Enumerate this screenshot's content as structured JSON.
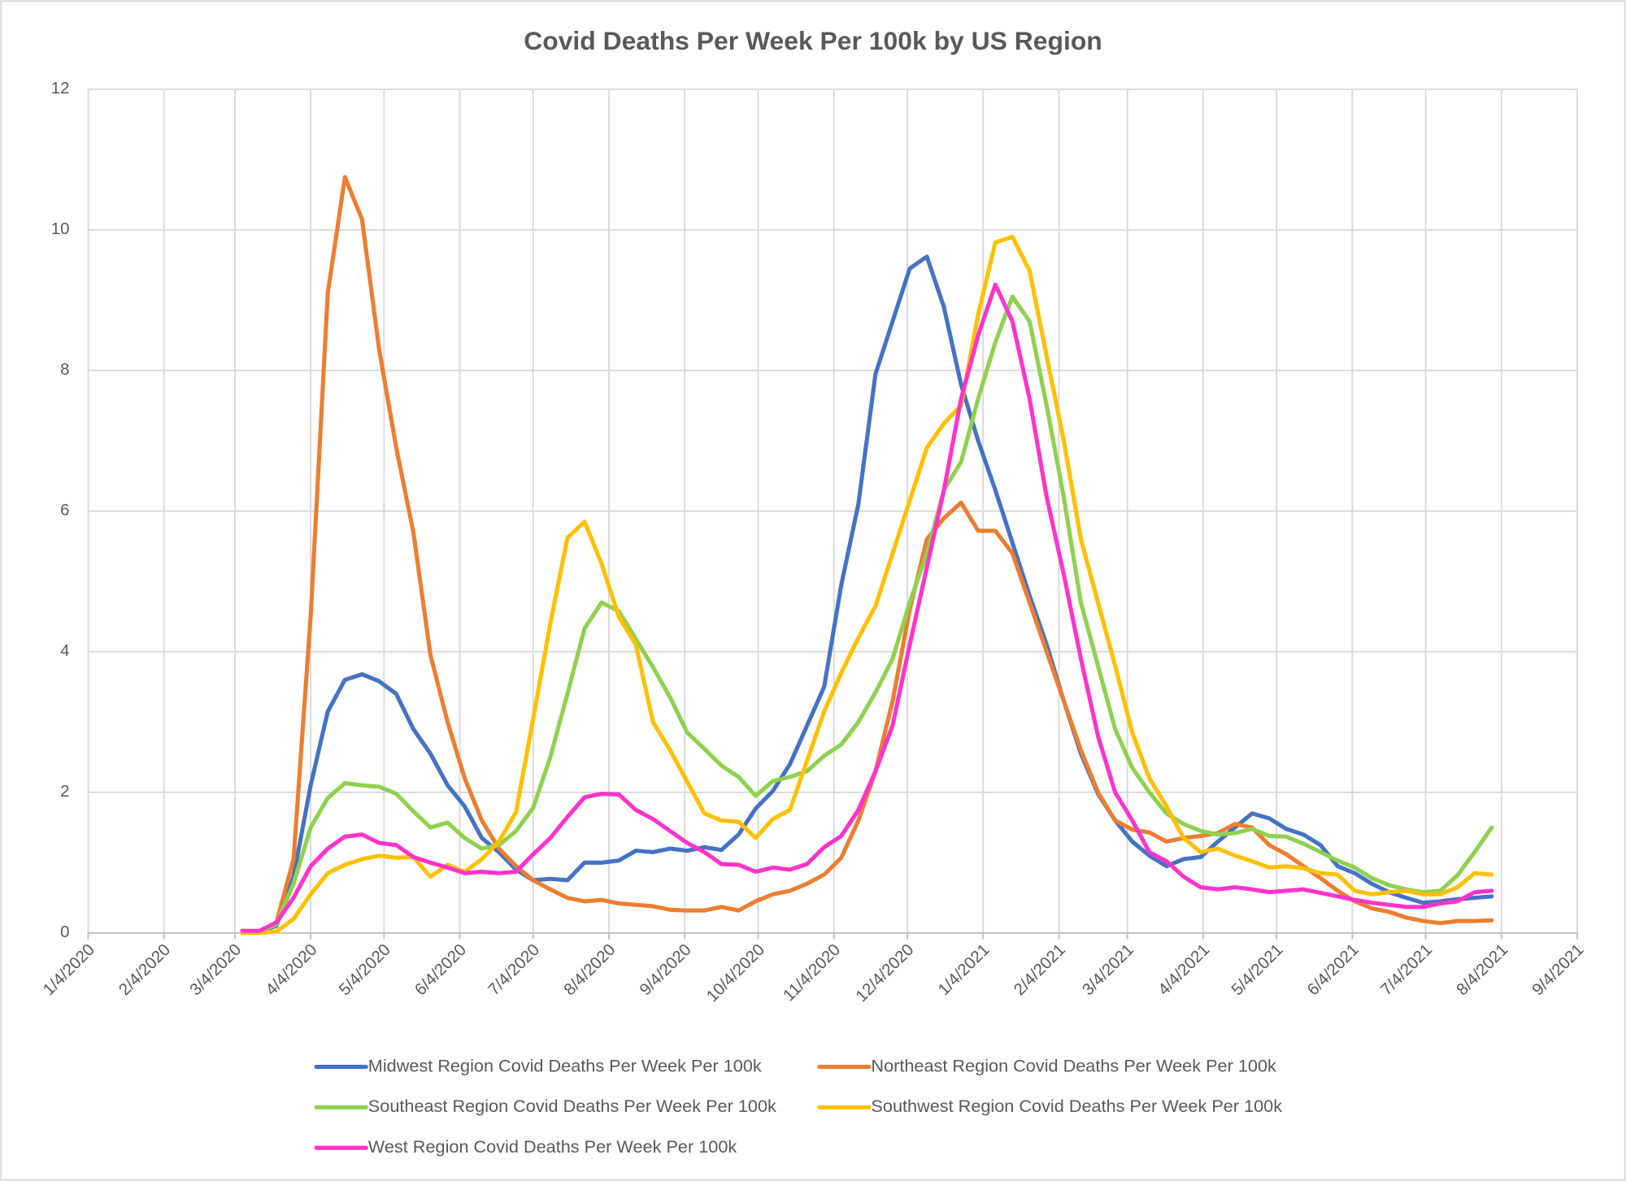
{
  "chart_data": {
    "type": "line",
    "title": "Covid Deaths Per Week Per 100k by US Region",
    "x": [
      "2020-03-07",
      "2020-03-14",
      "2020-03-21",
      "2020-03-28",
      "2020-04-04",
      "2020-04-11",
      "2020-04-18",
      "2020-04-25",
      "2020-05-02",
      "2020-05-09",
      "2020-05-16",
      "2020-05-23",
      "2020-05-30",
      "2020-06-06",
      "2020-06-13",
      "2020-06-20",
      "2020-06-27",
      "2020-07-04",
      "2020-07-11",
      "2020-07-18",
      "2020-07-25",
      "2020-08-01",
      "2020-08-08",
      "2020-08-15",
      "2020-08-22",
      "2020-08-29",
      "2020-09-05",
      "2020-09-12",
      "2020-09-19",
      "2020-09-26",
      "2020-10-03",
      "2020-10-10",
      "2020-10-17",
      "2020-10-24",
      "2020-10-31",
      "2020-11-07",
      "2020-11-14",
      "2020-11-21",
      "2020-11-28",
      "2020-12-05",
      "2020-12-12",
      "2020-12-19",
      "2020-12-26",
      "2021-01-02",
      "2021-01-09",
      "2021-01-16",
      "2021-01-23",
      "2021-01-30",
      "2021-02-06",
      "2021-02-13",
      "2021-02-20",
      "2021-02-27",
      "2021-03-06",
      "2021-03-13",
      "2021-03-20",
      "2021-03-27",
      "2021-04-03",
      "2021-04-10",
      "2021-04-17",
      "2021-04-24",
      "2021-05-01",
      "2021-05-08",
      "2021-05-15",
      "2021-05-22",
      "2021-05-29",
      "2021-06-05",
      "2021-06-12",
      "2021-06-19",
      "2021-06-26",
      "2021-07-03",
      "2021-07-10",
      "2021-07-17",
      "2021-07-24",
      "2021-07-31"
    ],
    "series": [
      {
        "name": "Midwest Region Covid Deaths Per Week Per 100k",
        "color": "#4472c4",
        "values": [
          0,
          0.02,
          0.1,
          0.8,
          2.1,
          3.15,
          3.6,
          3.68,
          3.58,
          3.4,
          2.9,
          2.55,
          2.1,
          1.8,
          1.35,
          1.15,
          0.9,
          0.75,
          0.77,
          0.75,
          1.0,
          1.0,
          1.03,
          1.17,
          1.15,
          1.2,
          1.17,
          1.22,
          1.18,
          1.4,
          1.77,
          2.02,
          2.4,
          2.95,
          3.5,
          4.95,
          6.1,
          7.95,
          8.7,
          9.45,
          9.62,
          8.9,
          7.8,
          7.0,
          6.3,
          5.55,
          4.8,
          4.1,
          3.3,
          2.55,
          1.98,
          1.6,
          1.3,
          1.1,
          0.95,
          1.05,
          1.08,
          1.3,
          1.5,
          1.7,
          1.63,
          1.48,
          1.4,
          1.25,
          0.95,
          0.85,
          0.7,
          0.58,
          0.5,
          0.43,
          0.45,
          0.48,
          0.5,
          0.52
        ]
      },
      {
        "name": "Northeast Region Covid Deaths Per Week Per 100k",
        "color": "#ed7d31",
        "values": [
          0,
          0.02,
          0.15,
          1.05,
          4.5,
          9.1,
          10.75,
          10.15,
          8.3,
          6.9,
          5.7,
          3.95,
          3.0,
          2.2,
          1.6,
          1.2,
          0.95,
          0.75,
          0.62,
          0.5,
          0.45,
          0.47,
          0.42,
          0.4,
          0.38,
          0.33,
          0.32,
          0.32,
          0.37,
          0.32,
          0.45,
          0.55,
          0.6,
          0.7,
          0.83,
          1.07,
          1.6,
          2.3,
          3.3,
          4.6,
          5.6,
          5.9,
          6.12,
          5.72,
          5.72,
          5.4,
          4.7,
          4.0,
          3.3,
          2.6,
          2.0,
          1.6,
          1.47,
          1.43,
          1.3,
          1.35,
          1.38,
          1.42,
          1.55,
          1.5,
          1.25,
          1.12,
          0.95,
          0.78,
          0.6,
          0.45,
          0.35,
          0.3,
          0.22,
          0.17,
          0.14,
          0.17,
          0.17,
          0.18
        ]
      },
      {
        "name": "Southeast Region Covid Deaths Per Week Per 100k",
        "color": "#8fd14f",
        "values": [
          0,
          0.02,
          0.12,
          0.7,
          1.5,
          1.92,
          2.13,
          2.1,
          2.08,
          1.98,
          1.73,
          1.5,
          1.57,
          1.35,
          1.2,
          1.25,
          1.45,
          1.78,
          2.5,
          3.4,
          4.33,
          4.7,
          4.58,
          4.18,
          3.78,
          3.35,
          2.85,
          2.62,
          2.38,
          2.22,
          1.95,
          2.16,
          2.22,
          2.3,
          2.52,
          2.68,
          3.0,
          3.42,
          3.9,
          4.7,
          5.4,
          6.3,
          6.7,
          7.6,
          8.4,
          9.05,
          8.7,
          7.5,
          6.2,
          4.7,
          3.8,
          2.9,
          2.35,
          2.0,
          1.7,
          1.55,
          1.45,
          1.4,
          1.42,
          1.48,
          1.38,
          1.37,
          1.27,
          1.15,
          1.03,
          0.93,
          0.78,
          0.68,
          0.62,
          0.58,
          0.6,
          0.82,
          1.15,
          1.5
        ]
      },
      {
        "name": "Southwest Region Covid Deaths Per Week Per 100k",
        "color": "#ffc000",
        "values": [
          0,
          0,
          0.02,
          0.2,
          0.55,
          0.85,
          0.97,
          1.05,
          1.1,
          1.07,
          1.08,
          0.8,
          0.97,
          0.87,
          1.05,
          1.3,
          1.72,
          3.05,
          4.4,
          5.62,
          5.85,
          5.25,
          4.5,
          4.1,
          3.0,
          2.6,
          2.15,
          1.7,
          1.6,
          1.58,
          1.35,
          1.62,
          1.75,
          2.45,
          3.15,
          3.7,
          4.2,
          4.65,
          5.4,
          6.15,
          6.9,
          7.25,
          7.5,
          8.8,
          9.82,
          9.9,
          9.42,
          8.2,
          7.0,
          5.6,
          4.7,
          3.8,
          2.85,
          2.2,
          1.8,
          1.35,
          1.15,
          1.2,
          1.1,
          1.02,
          0.93,
          0.95,
          0.92,
          0.85,
          0.83,
          0.6,
          0.55,
          0.58,
          0.6,
          0.55,
          0.55,
          0.65,
          0.85,
          0.83
        ]
      },
      {
        "name": "West Region Covid Deaths Per Week Per 100k",
        "color": "#ff33cc",
        "values": [
          0.03,
          0.03,
          0.15,
          0.5,
          0.95,
          1.2,
          1.37,
          1.4,
          1.28,
          1.25,
          1.08,
          1.0,
          0.93,
          0.85,
          0.87,
          0.85,
          0.87,
          1.12,
          1.35,
          1.65,
          1.93,
          1.98,
          1.97,
          1.75,
          1.62,
          1.45,
          1.28,
          1.15,
          0.98,
          0.97,
          0.87,
          0.93,
          0.9,
          0.98,
          1.22,
          1.38,
          1.75,
          2.3,
          2.95,
          4.1,
          5.2,
          6.3,
          7.6,
          8.5,
          9.22,
          8.7,
          7.6,
          6.2,
          5.1,
          3.9,
          2.8,
          2.0,
          1.6,
          1.15,
          1.02,
          0.8,
          0.65,
          0.62,
          0.65,
          0.62,
          0.58,
          0.6,
          0.62,
          0.57,
          0.52,
          0.47,
          0.43,
          0.4,
          0.37,
          0.37,
          0.42,
          0.45,
          0.58,
          0.6
        ]
      }
    ],
    "xlim": [
      "2020-01-04",
      "2021-09-04"
    ],
    "xticks": [
      {
        "value": "2020-01-04",
        "label": "1/4/2020"
      },
      {
        "value": "2020-02-04",
        "label": "2/4/2020"
      },
      {
        "value": "2020-03-04",
        "label": "3/4/2020"
      },
      {
        "value": "2020-04-04",
        "label": "4/4/2020"
      },
      {
        "value": "2020-05-04",
        "label": "5/4/2020"
      },
      {
        "value": "2020-06-04",
        "label": "6/4/2020"
      },
      {
        "value": "2020-07-04",
        "label": "7/4/2020"
      },
      {
        "value": "2020-08-04",
        "label": "8/4/2020"
      },
      {
        "value": "2020-09-04",
        "label": "9/4/2020"
      },
      {
        "value": "2020-10-04",
        "label": "10/4/2020"
      },
      {
        "value": "2020-11-04",
        "label": "11/4/2020"
      },
      {
        "value": "2020-12-04",
        "label": "12/4/2020"
      },
      {
        "value": "2021-01-04",
        "label": "1/4/2021"
      },
      {
        "value": "2021-02-04",
        "label": "2/4/2021"
      },
      {
        "value": "2021-03-04",
        "label": "3/4/2021"
      },
      {
        "value": "2021-04-04",
        "label": "4/4/2021"
      },
      {
        "value": "2021-05-04",
        "label": "5/4/2021"
      },
      {
        "value": "2021-06-04",
        "label": "6/4/2021"
      },
      {
        "value": "2021-07-04",
        "label": "7/4/2021"
      },
      {
        "value": "2021-08-04",
        "label": "8/4/2021"
      },
      {
        "value": "2021-09-04",
        "label": "9/4/2021"
      }
    ],
    "ylim": [
      0,
      12
    ],
    "yticks": [
      0,
      2,
      4,
      6,
      8,
      10,
      12
    ],
    "grid": true,
    "legend": "bottom"
  }
}
